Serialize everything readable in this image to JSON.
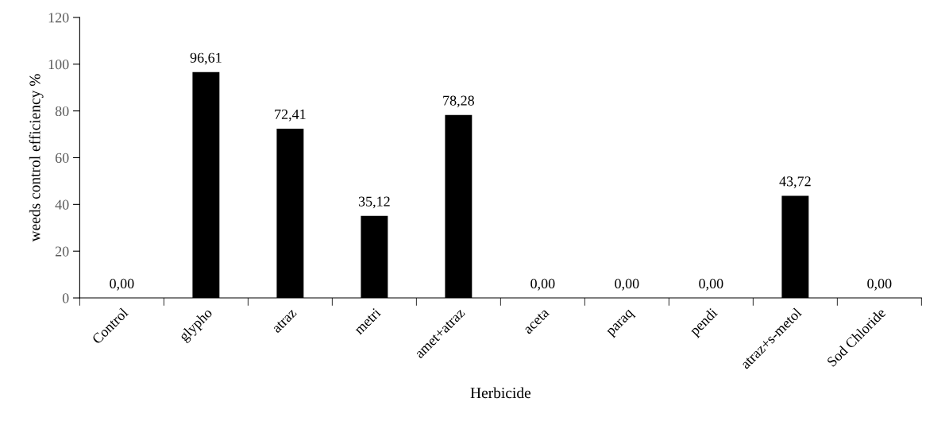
{
  "chart_data": {
    "type": "bar",
    "xlabel": "Herbicide",
    "ylabel": "weeds control efficiency %",
    "categories": [
      "Control",
      "glypho",
      "atraz",
      "metri",
      "amet+atraz",
      "aceta",
      "paraq",
      "pendi",
      "atraz+s-metol",
      "Sod Chloride"
    ],
    "values": [
      0,
      96.61,
      72.41,
      35.12,
      78.28,
      0,
      0,
      0,
      43.72,
      0
    ],
    "value_labels": [
      "0,00",
      "96,61",
      "72,41",
      "35,12",
      "78,28",
      "0,00",
      "0,00",
      "0,00",
      "43,72",
      "0,00"
    ],
    "color": "#000000",
    "ylim": [
      0,
      120
    ],
    "yticks": [
      0,
      20,
      40,
      60,
      80,
      100,
      120
    ],
    "grid": false
  }
}
